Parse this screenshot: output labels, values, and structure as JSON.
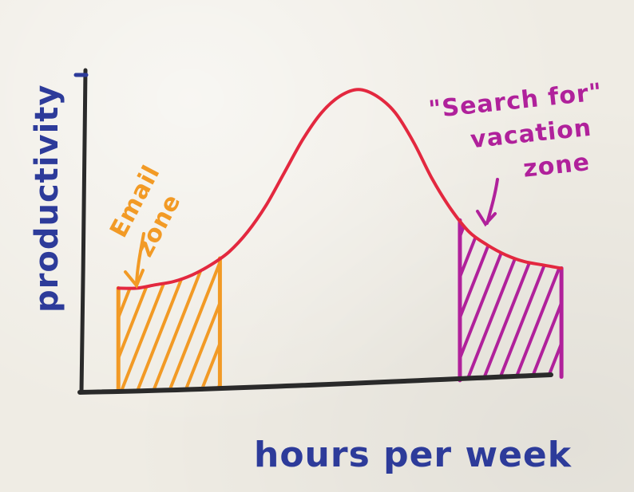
{
  "chart_data": {
    "type": "area",
    "xlabel": "hours per week",
    "ylabel": "productivity",
    "xlim": [
      0,
      100
    ],
    "ylim": [
      0,
      100
    ],
    "series": [
      {
        "x": [
          8,
          12,
          16,
          20,
          24,
          28,
          32,
          36,
          40,
          44,
          48,
          52,
          56,
          60,
          64,
          68,
          72,
          76,
          80,
          84,
          88,
          92,
          96,
          100,
          104
        ],
        "y": [
          31,
          31,
          32,
          33,
          35,
          38,
          42,
          48,
          56,
          66,
          76,
          84,
          89,
          91,
          89,
          84,
          75,
          64,
          55,
          48,
          44,
          41,
          39,
          38,
          37
        ]
      }
    ],
    "annotations": [
      {
        "label_lines": [
          "Email",
          "zone"
        ],
        "x_range": [
          8,
          30
        ],
        "color": "#f29a25"
      },
      {
        "label_lines": [
          "\"Search for\"",
          "vacation",
          "zone"
        ],
        "x_range": [
          82,
          104
        ],
        "color": "#b0219b"
      }
    ],
    "colors": {
      "curve": "#e3283f",
      "axis": "#2a2a2a",
      "axis_label": "#2d3b9a"
    }
  }
}
